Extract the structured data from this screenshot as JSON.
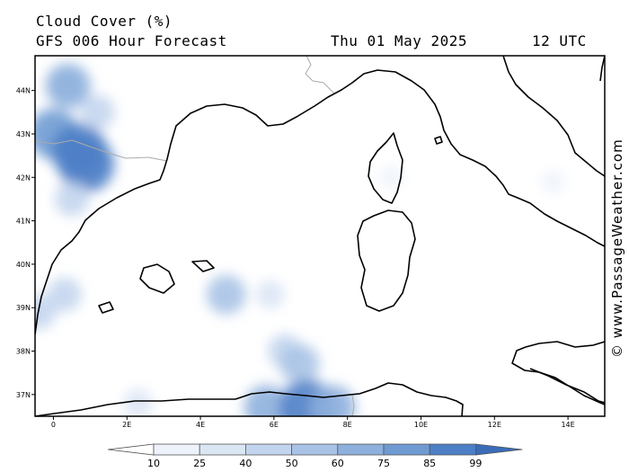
{
  "header": {
    "title": "Cloud Cover (%)",
    "model": "GFS 006 Hour Forecast",
    "date": "Thu 01 May 2025",
    "time": "12 UTC"
  },
  "credit": "© www.PassageWeather.com",
  "map": {
    "lon_range": [
      -0.5,
      15
    ],
    "lat_range": [
      36.5,
      44.8
    ],
    "lon_ticks": [
      "0",
      "2E",
      "4E",
      "6E",
      "8E",
      "10E",
      "12E",
      "14E"
    ],
    "lat_ticks": [
      "44N",
      "43N",
      "42N",
      "41N",
      "40N",
      "39N",
      "38N",
      "37N"
    ]
  },
  "colorbar": {
    "labels": [
      "10",
      "25",
      "40",
      "50",
      "60",
      "75",
      "85",
      "99"
    ],
    "colors": [
      "#ffffff",
      "#eef3fb",
      "#dbe6f5",
      "#c3d5ee",
      "#a9c3e6",
      "#8eb0dd",
      "#6f9bd3",
      "#4d7fc6",
      "#3a6cb8"
    ]
  },
  "cloud_cells": [
    {
      "lon": 0.3,
      "lat": 44.2,
      "level": 3
    },
    {
      "lon": 0.4,
      "lat": 44.1,
      "level": 5
    },
    {
      "lon": 0.0,
      "lat": 43.0,
      "level": 6
    },
    {
      "lon": 0.7,
      "lat": 42.6,
      "level": 7
    },
    {
      "lon": 0.9,
      "lat": 42.3,
      "level": 7
    },
    {
      "lon": 1.2,
      "lat": 43.5,
      "level": 3
    },
    {
      "lon": 0.5,
      "lat": 41.5,
      "level": 3
    },
    {
      "lon": 0.3,
      "lat": 39.3,
      "level": 3
    },
    {
      "lon": -0.4,
      "lat": 38.9,
      "level": 3
    },
    {
      "lon": 4.7,
      "lat": 39.3,
      "level": 4
    },
    {
      "lon": 5.9,
      "lat": 39.3,
      "level": 2
    },
    {
      "lon": 9.2,
      "lat": 42.0,
      "level": 1
    },
    {
      "lon": 6.3,
      "lat": 38.0,
      "level": 3
    },
    {
      "lon": 6.7,
      "lat": 37.7,
      "level": 4
    },
    {
      "lon": 2.3,
      "lat": 36.8,
      "level": 2
    },
    {
      "lon": 5.8,
      "lat": 36.7,
      "level": 5
    },
    {
      "lon": 6.9,
      "lat": 36.7,
      "level": 7
    },
    {
      "lon": 7.6,
      "lat": 36.7,
      "level": 5
    },
    {
      "lon": 13.6,
      "lat": 41.9,
      "level": 1
    }
  ]
}
